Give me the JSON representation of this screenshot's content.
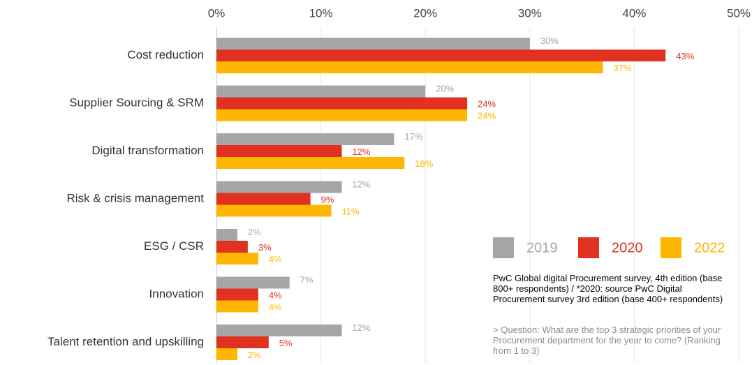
{
  "chart_data": {
    "type": "bar",
    "orientation": "horizontal",
    "categories": [
      "Cost reduction",
      "Supplier Sourcing & SRM",
      "Digital transformation",
      "Risk & crisis management",
      "ESG / CSR",
      "Innovation",
      "Talent retention and upskilling"
    ],
    "series": [
      {
        "name": "2019",
        "color": "#a6a6a6",
        "values": [
          30,
          20,
          17,
          12,
          2,
          7,
          12
        ],
        "value_labels": [
          "30%",
          "20%",
          "17%",
          "12%",
          "2%",
          "7%",
          "12%"
        ]
      },
      {
        "name": "2020",
        "color": "#e03121",
        "values": [
          43,
          24,
          12,
          9,
          3,
          4,
          5
        ],
        "value_labels": [
          "43%",
          "24%",
          "12%",
          "9%",
          "3%",
          "4%",
          "5%"
        ]
      },
      {
        "name": "2022",
        "color": "#ffb600",
        "values": [
          37,
          24,
          18,
          11,
          4,
          4,
          2
        ],
        "value_labels": [
          "37%",
          "24%",
          "18%",
          "11%",
          "4%",
          "4%",
          "2%"
        ]
      }
    ],
    "xlim": [
      0,
      50
    ],
    "xticks": [
      {
        "value": 0,
        "label": "0%"
      },
      {
        "value": 10,
        "label": "10%"
      },
      {
        "value": 20,
        "label": "20%"
      },
      {
        "value": 30,
        "label": "30%"
      },
      {
        "value": 40,
        "label": "40%"
      },
      {
        "value": 50,
        "label": "50%"
      }
    ],
    "grid": true,
    "legend": "right",
    "source": "PwC Global digital Procurement survey, 4th edition (base 800+ respondents) / *2020: source PwC Digital Procurement survey 3rd edition (base 400+ respondents)",
    "question": "> Question: What are the top 3 strategic priorities of your Procurement department for the year to come? (Ranking from 1 to 3)"
  }
}
